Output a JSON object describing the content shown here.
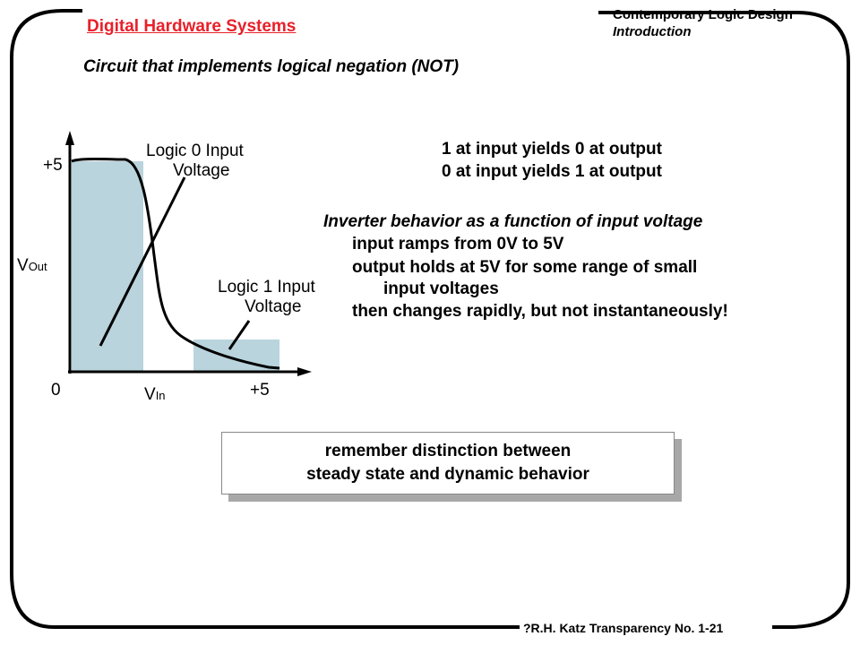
{
  "header": {
    "title": "Digital Hardware Systems",
    "course": "Contemporary Logic Design",
    "section": "Introduction"
  },
  "subtitle": "Circuit that implements logical negation (NOT)",
  "facts": [
    "1 at input yields 0 at output",
    "0 at input yields 1 at output"
  ],
  "behavior": {
    "heading": "Inverter behavior as a function of input voltage",
    "lines": [
      "input ramps from 0V to 5V",
      "output holds at 5V for some range of small",
      "input voltages",
      "then changes rapidly, but not instantaneously!"
    ]
  },
  "graph": {
    "y_max_label": "+5",
    "y_label_main": "V",
    "y_label_sub": "Out",
    "origin_label": "0",
    "x_label_main": "V",
    "x_label_sub": "In",
    "x_max_label": "+5",
    "logic0_label": [
      "Logic 0 Input",
      "Voltage"
    ],
    "logic1_label": [
      "Logic 1 Input",
      "Voltage"
    ],
    "region_color": "#b9d4dc"
  },
  "note": [
    "remember distinction between",
    "steady state and dynamic behavior"
  ],
  "footer": "?R.H. Katz   Transparency  No. 1-21"
}
